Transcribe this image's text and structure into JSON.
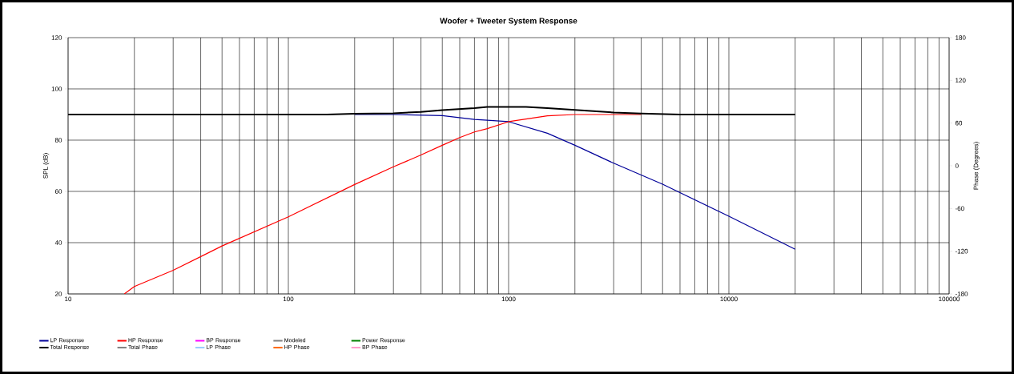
{
  "chart_data": {
    "type": "line",
    "title": "Woofer + Tweeter    System Response",
    "ylabel": "SPL (dB)",
    "y2label": "Phase (Degrees)",
    "log": "x",
    "xlim": [
      10,
      100000
    ],
    "xticks": [
      10,
      100,
      1000,
      10000,
      100000
    ],
    "ylim": [
      20,
      120
    ],
    "yticks": [
      20,
      40,
      60,
      80,
      100,
      120
    ],
    "y2lim": [
      -180,
      180
    ],
    "y2ticks": [
      -180,
      -120,
      -60,
      0,
      60,
      120,
      180
    ],
    "grid": true,
    "legend": "bottom",
    "series": [
      {
        "name": "LP Response",
        "color": "#000099",
        "x": [
          200,
          300,
          500,
          700,
          800,
          1000,
          1500,
          2000,
          3000,
          5000,
          10000,
          20000
        ],
        "values": [
          90,
          90,
          89.6,
          88.1,
          87.8,
          87.2,
          82.7,
          78,
          71,
          62.8,
          50.3,
          37.4
        ]
      },
      {
        "name": "HP Response",
        "color": "#ff0000",
        "x": [
          18,
          20,
          30,
          50,
          100,
          200,
          300,
          400,
          500,
          600,
          700,
          800,
          1000,
          1500,
          2000,
          3000,
          4000
        ],
        "values": [
          20,
          22.9,
          29.2,
          38.7,
          50.1,
          62.7,
          69.6,
          74.2,
          78,
          81,
          83.2,
          84.5,
          87.2,
          89.5,
          90,
          90,
          90
        ]
      },
      {
        "name": "BP Response",
        "color": "#ff00ff"
      },
      {
        "name": "Modeled",
        "color": "#808080"
      },
      {
        "name": "Power Response",
        "color": "#008000"
      },
      {
        "name": "Total Response",
        "color": "#000000",
        "x": [
          10,
          150,
          200,
          300,
          400,
          500,
          700,
          800,
          1000,
          1200,
          1500,
          2000,
          3000,
          4000,
          6000,
          20000
        ],
        "values": [
          90,
          90,
          90.3,
          90.5,
          91,
          91.7,
          92.5,
          93,
          93,
          93,
          92.5,
          91.8,
          90.8,
          90.4,
          90,
          90
        ]
      },
      {
        "name": "Total Phase",
        "color": "#808080"
      },
      {
        "name": "LP Phase",
        "color": "#99ccff"
      },
      {
        "name": "HP Phase",
        "color": "#ff6600"
      },
      {
        "name": "BP Phase",
        "color": "#ff99cc"
      }
    ]
  }
}
